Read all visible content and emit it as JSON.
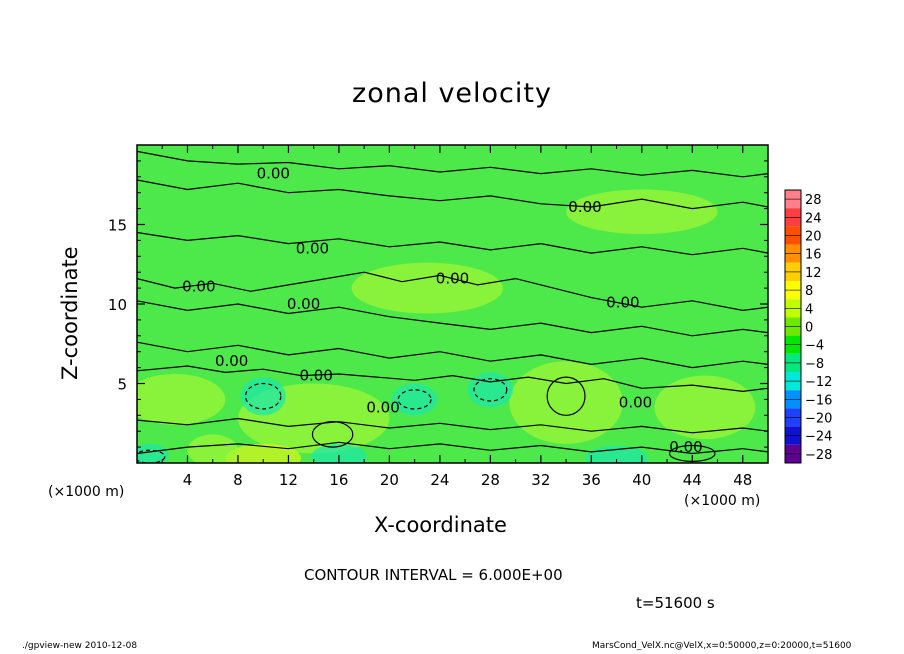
{
  "chart_data": {
    "type": "heatmap",
    "title": "zonal velocity",
    "xlabel": "X-coordinate",
    "ylabel": "Z-coordinate",
    "x_unit_label": "(×1000 m)",
    "xlim": [
      0,
      50
    ],
    "ylim": [
      0,
      20
    ],
    "x_ticks": [
      4,
      8,
      12,
      16,
      20,
      24,
      28,
      32,
      36,
      40,
      44,
      48
    ],
    "y_ticks": [
      5,
      10,
      15
    ],
    "contour_interval_text": "CONTOUR INTERVAL = 6.000E+00",
    "contour_labels": [
      {
        "text": "0.00",
        "x": 10.8,
        "z": 18.2
      },
      {
        "text": "0.00",
        "x": 35.5,
        "z": 16.1
      },
      {
        "text": "0.00",
        "x": 13.9,
        "z": 13.5
      },
      {
        "text": "0.00",
        "x": 4.9,
        "z": 11.1
      },
      {
        "text": "0.00",
        "x": 25.0,
        "z": 11.6
      },
      {
        "text": "0.00",
        "x": 13.2,
        "z": 10.0
      },
      {
        "text": "0.00",
        "x": 38.5,
        "z": 10.1
      },
      {
        "text": "0.00",
        "x": 7.5,
        "z": 6.4
      },
      {
        "text": "0.00",
        "x": 14.2,
        "z": 5.5
      },
      {
        "text": "0.00",
        "x": 19.5,
        "z": 3.5
      },
      {
        "text": "0.00",
        "x": 39.5,
        "z": 3.8
      },
      {
        "text": "0.00",
        "x": 43.5,
        "z": 1.0
      }
    ],
    "colorbar": {
      "levels": [
        28,
        24,
        20,
        16,
        12,
        8,
        4,
        0,
        -4,
        -8,
        -12,
        -16,
        -20,
        -24,
        -28
      ],
      "label_texts": [
        "28",
        "24",
        "20",
        "16",
        "12",
        "8",
        "4",
        "0",
        "−4",
        "−8",
        "−12",
        "−16",
        "−20",
        "−24",
        "−28"
      ],
      "colors": [
        "#ff7f8a",
        "#ff3f3f",
        "#ff4f00",
        "#ff8f00",
        "#ffcf00",
        "#ffff00",
        "#bfff00",
        "#6fe800",
        "#00e800",
        "#00e87f",
        "#00e8d8",
        "#0090ff",
        "#2040ff",
        "#1010d0",
        "#600090"
      ]
    },
    "field_colors": {
      "base": "#4de84a",
      "light": "#9ef535",
      "yellow": "#d4f51e",
      "cyan": "#1fe8a8",
      "teal": "#2fe89a"
    }
  },
  "annotations": {
    "time": "t=51600 s",
    "footer_left": "./gpview-new  2010-12-08",
    "footer_right": "MarsCond_VelX.nc@VelX,x=0:50000,z=0:20000,t=51600"
  }
}
